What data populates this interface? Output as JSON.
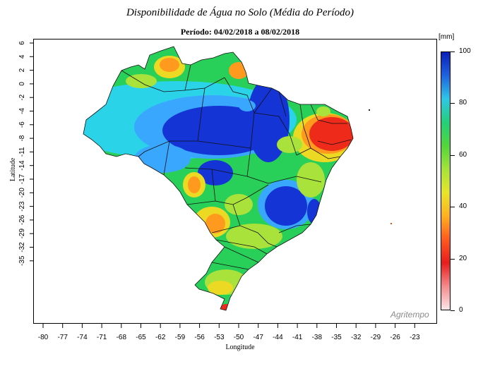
{
  "title": "Disponibilidade de Água no Solo (Média do Período)",
  "period": "Período: 04/02/2018 a 08/02/2018",
  "ylabel": "Latitude",
  "xlabel": "Longitude",
  "logo": "Agritempo",
  "colorbar": {
    "unit": "[mm]",
    "ticks": [
      "100",
      "80",
      "60",
      "40",
      "20",
      "0"
    ],
    "colors": [
      "#0a1fb8",
      "#1f63e0",
      "#2fc7e6",
      "#22d07a",
      "#52d63a",
      "#a6e23a",
      "#e8e52a",
      "#ffb020",
      "#ff5a1f",
      "#e81d1d",
      "#f38a8a",
      "#fde6ea"
    ]
  },
  "y_ticks": [
    "6",
    "4",
    "2",
    "0",
    "-2",
    "-4",
    "-6",
    "-8",
    "-11",
    "-14",
    "-17",
    "-20",
    "-23",
    "-26",
    "-29",
    "-32",
    "-35"
  ],
  "x_ticks": [
    "-80",
    "-77",
    "-74",
    "-71",
    "-68",
    "-65",
    "-62",
    "-59",
    "-56",
    "-53",
    "-50",
    "-47",
    "-44",
    "-41",
    "-38",
    "-35",
    "-32",
    "-29",
    "-26",
    "-23"
  ],
  "map": {
    "region": "Brazil",
    "palette": {
      "blue": "#1434d6",
      "light_blue": "#3aa7ff",
      "cyan": "#2bd3e8",
      "green": "#28cf58",
      "yellow_green": "#a9e23a",
      "yellow": "#ecd924",
      "orange": "#ff9a1f",
      "red": "#ee2a1a",
      "pink": "#f59aa0"
    }
  }
}
